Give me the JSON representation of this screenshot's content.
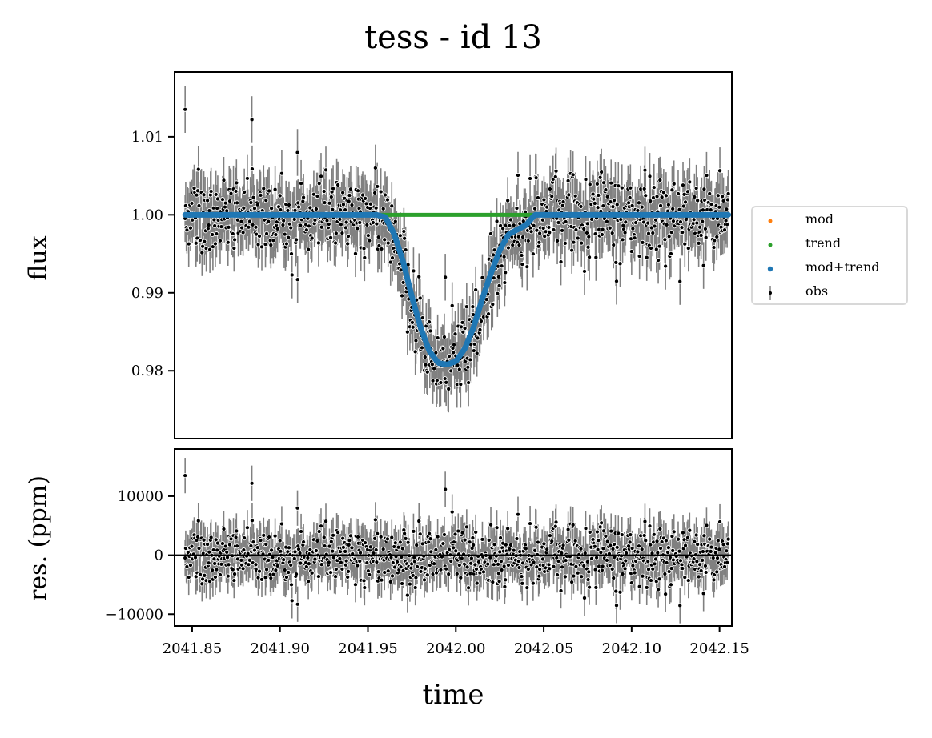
{
  "chart_data": [
    {
      "panel": "main",
      "type": "scatter",
      "title": "tess - id 13",
      "xlabel": "",
      "ylabel": "flux",
      "xlim": [
        2041.84,
        2042.157
      ],
      "ylim": [
        0.9713,
        1.0183
      ],
      "yticks": [
        "0.98",
        "0.99",
        "1.00",
        "1.01"
      ],
      "ytick_values": [
        0.98,
        0.99,
        1.0,
        1.01
      ],
      "grid": false,
      "legend_placement": "center-right outside",
      "series": [
        {
          "name": "mod",
          "color": "#ff7f0e",
          "kind": "points",
          "shown": false
        },
        {
          "name": "trend",
          "color": "#2ca02c",
          "kind": "line",
          "x": [
            2041.846,
            2042.155
          ],
          "y": [
            1.0,
            1.0
          ]
        },
        {
          "name": "mod+trend",
          "color": "#1f77b4",
          "kind": "line",
          "x": [
            2041.846,
            2041.955,
            2041.96,
            2041.965,
            2041.97,
            2041.975,
            2041.98,
            2041.985,
            2041.99,
            2041.995,
            2042.0,
            2042.005,
            2042.01,
            2042.015,
            2042.02,
            2042.025,
            2042.03,
            2042.035,
            2042.04,
            2042.045,
            2042.155
          ],
          "y": [
            1.0,
            1.0,
            0.9997,
            0.9975,
            0.994,
            0.9895,
            0.9855,
            0.9825,
            0.981,
            0.9808,
            0.9812,
            0.9828,
            0.9855,
            0.9892,
            0.9925,
            0.9955,
            0.9975,
            0.9981,
            0.9987,
            1.0,
            1.0
          ]
        },
        {
          "name": "obs",
          "color": "#000000",
          "kind": "errorbar",
          "error_color": "#808080",
          "x_range": [
            2041.846,
            2042.155
          ],
          "n_points": 900,
          "typical_error": 0.003,
          "scatter_sd": 0.0025,
          "outliers": [
            [
              2041.846,
              1.0135
            ],
            [
              2041.884,
              1.0122
            ],
            [
              2041.91,
              0.9917
            ],
            [
              2041.994,
              0.992
            ]
          ]
        }
      ]
    },
    {
      "panel": "residuals",
      "type": "scatter",
      "xlabel": "time",
      "ylabel": "res. (ppm)",
      "xlim": [
        2041.84,
        2042.157
      ],
      "ylim": [
        -12000,
        18000
      ],
      "yticks": [
        "−10000",
        "0",
        "10000"
      ],
      "ytick_values": [
        -10000,
        0,
        10000
      ],
      "xticks": [
        "2041.85",
        "2041.90",
        "2041.95",
        "2042.00",
        "2042.05",
        "2042.10",
        "2042.15"
      ],
      "xtick_values": [
        2041.85,
        2041.9,
        2041.95,
        2042.0,
        2042.05,
        2042.1,
        2042.15
      ],
      "zero_line": 0,
      "series": [
        {
          "name": "obs",
          "color": "#000000",
          "kind": "errorbar",
          "error_color": "#808080",
          "x_range": [
            2041.846,
            2042.155
          ],
          "n_points": 900,
          "typical_error": 3000,
          "scatter_sd": 2500,
          "outliers": [
            [
              2041.846,
              13500
            ],
            [
              2041.884,
              12300
            ],
            [
              2041.91,
              -8200
            ],
            [
              2041.994,
              11000
            ]
          ]
        }
      ]
    }
  ],
  "legend": [
    {
      "label": "mod",
      "color": "#ff7f0e",
      "marker": "dot-small"
    },
    {
      "label": "trend",
      "color": "#2ca02c",
      "marker": "dot-small"
    },
    {
      "label": "mod+trend",
      "color": "#1f77b4",
      "marker": "dot"
    },
    {
      "label": "obs",
      "color": "#000000",
      "marker": "errorbar"
    }
  ]
}
